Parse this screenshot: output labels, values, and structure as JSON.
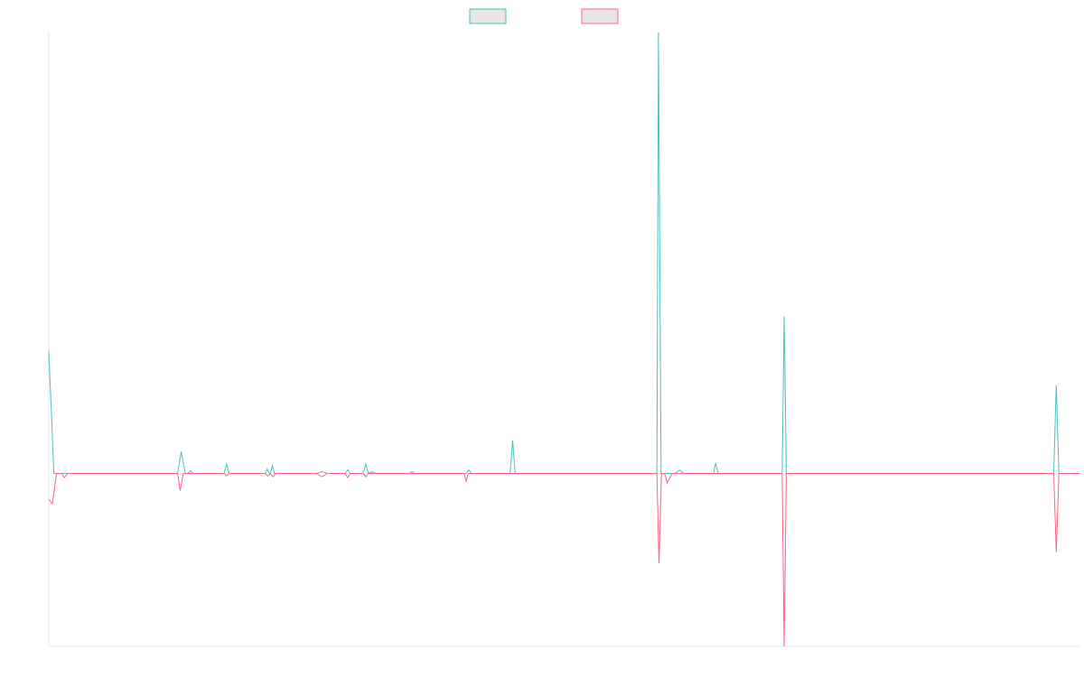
{
  "chart_data": {
    "type": "line",
    "title": "",
    "xlabel": "",
    "ylabel": "",
    "x_range": [
      0,
      200
    ],
    "ylim": [
      -1000,
      2550
    ],
    "grid": false,
    "legend_placement": "top-center",
    "legend": [
      {
        "name": "",
        "stroke": "#4bc0c0",
        "fill": "#e6e6e6"
      },
      {
        "name": "",
        "stroke": "#ff6384",
        "fill": "#e6e6e6"
      }
    ],
    "series": [
      {
        "name": "",
        "color": "#4bc0c0",
        "points": [
          [
            0,
            710
          ],
          [
            1,
            0
          ],
          [
            25,
            0
          ],
          [
            25.7,
            125
          ],
          [
            26.5,
            0
          ],
          [
            27,
            0
          ],
          [
            27.5,
            15
          ],
          [
            28,
            0
          ],
          [
            34,
            0
          ],
          [
            34.5,
            55
          ],
          [
            35,
            0
          ],
          [
            42,
            0
          ],
          [
            42.4,
            25
          ],
          [
            42.8,
            0
          ],
          [
            43,
            0
          ],
          [
            43.4,
            45
          ],
          [
            43.8,
            0
          ],
          [
            52,
            0
          ],
          [
            53,
            10
          ],
          [
            54,
            0
          ],
          [
            57.5,
            0
          ],
          [
            58,
            20
          ],
          [
            58.5,
            0
          ],
          [
            61,
            0
          ],
          [
            61.5,
            55
          ],
          [
            62,
            0
          ],
          [
            62.7,
            10
          ],
          [
            63.4,
            0
          ],
          [
            70,
            0
          ],
          [
            70.5,
            10
          ],
          [
            71,
            0
          ],
          [
            81,
            0
          ],
          [
            81.5,
            20
          ],
          [
            82,
            0
          ],
          [
            89.5,
            0
          ],
          [
            90,
            190
          ],
          [
            90.5,
            0
          ],
          [
            118,
            0
          ],
          [
            118.3,
            2550
          ],
          [
            118.8,
            0
          ],
          [
            119.5,
            0
          ],
          [
            121.5,
            0
          ],
          [
            122.4,
            20
          ],
          [
            123.2,
            0
          ],
          [
            129,
            0
          ],
          [
            129.4,
            60
          ],
          [
            129.9,
            0
          ],
          [
            142.3,
            0
          ],
          [
            142.7,
            910
          ],
          [
            143.1,
            0
          ],
          [
            195,
            0
          ],
          [
            195.5,
            510
          ],
          [
            196,
            0
          ],
          [
            200,
            0
          ]
        ]
      },
      {
        "name": "",
        "color": "#ff6384",
        "points": [
          [
            0,
            -150
          ],
          [
            0.7,
            -175
          ],
          [
            1.5,
            0
          ],
          [
            2.5,
            0
          ],
          [
            3,
            -25
          ],
          [
            3.7,
            0
          ],
          [
            25,
            0
          ],
          [
            25.5,
            -100
          ],
          [
            26.1,
            0
          ],
          [
            34,
            0
          ],
          [
            34.5,
            -15
          ],
          [
            35,
            0
          ],
          [
            42,
            0
          ],
          [
            42.5,
            -15
          ],
          [
            43,
            0
          ],
          [
            43.5,
            -20
          ],
          [
            44,
            0
          ],
          [
            52,
            0
          ],
          [
            53,
            -20
          ],
          [
            54,
            0
          ],
          [
            57.5,
            0
          ],
          [
            58,
            -25
          ],
          [
            58.5,
            0
          ],
          [
            61,
            0
          ],
          [
            61.5,
            -20
          ],
          [
            62,
            0
          ],
          [
            80.6,
            0
          ],
          [
            81,
            -45
          ],
          [
            81.4,
            0
          ],
          [
            90,
            0
          ],
          [
            118,
            0
          ],
          [
            118.4,
            -520
          ],
          [
            118.9,
            0
          ],
          [
            119.5,
            0
          ],
          [
            120,
            -55
          ],
          [
            121,
            0
          ],
          [
            142.3,
            0
          ],
          [
            142.7,
            -1000
          ],
          [
            143.1,
            0
          ],
          [
            195,
            0
          ],
          [
            195.5,
            -455
          ],
          [
            196,
            0
          ],
          [
            200,
            0
          ]
        ]
      }
    ]
  }
}
